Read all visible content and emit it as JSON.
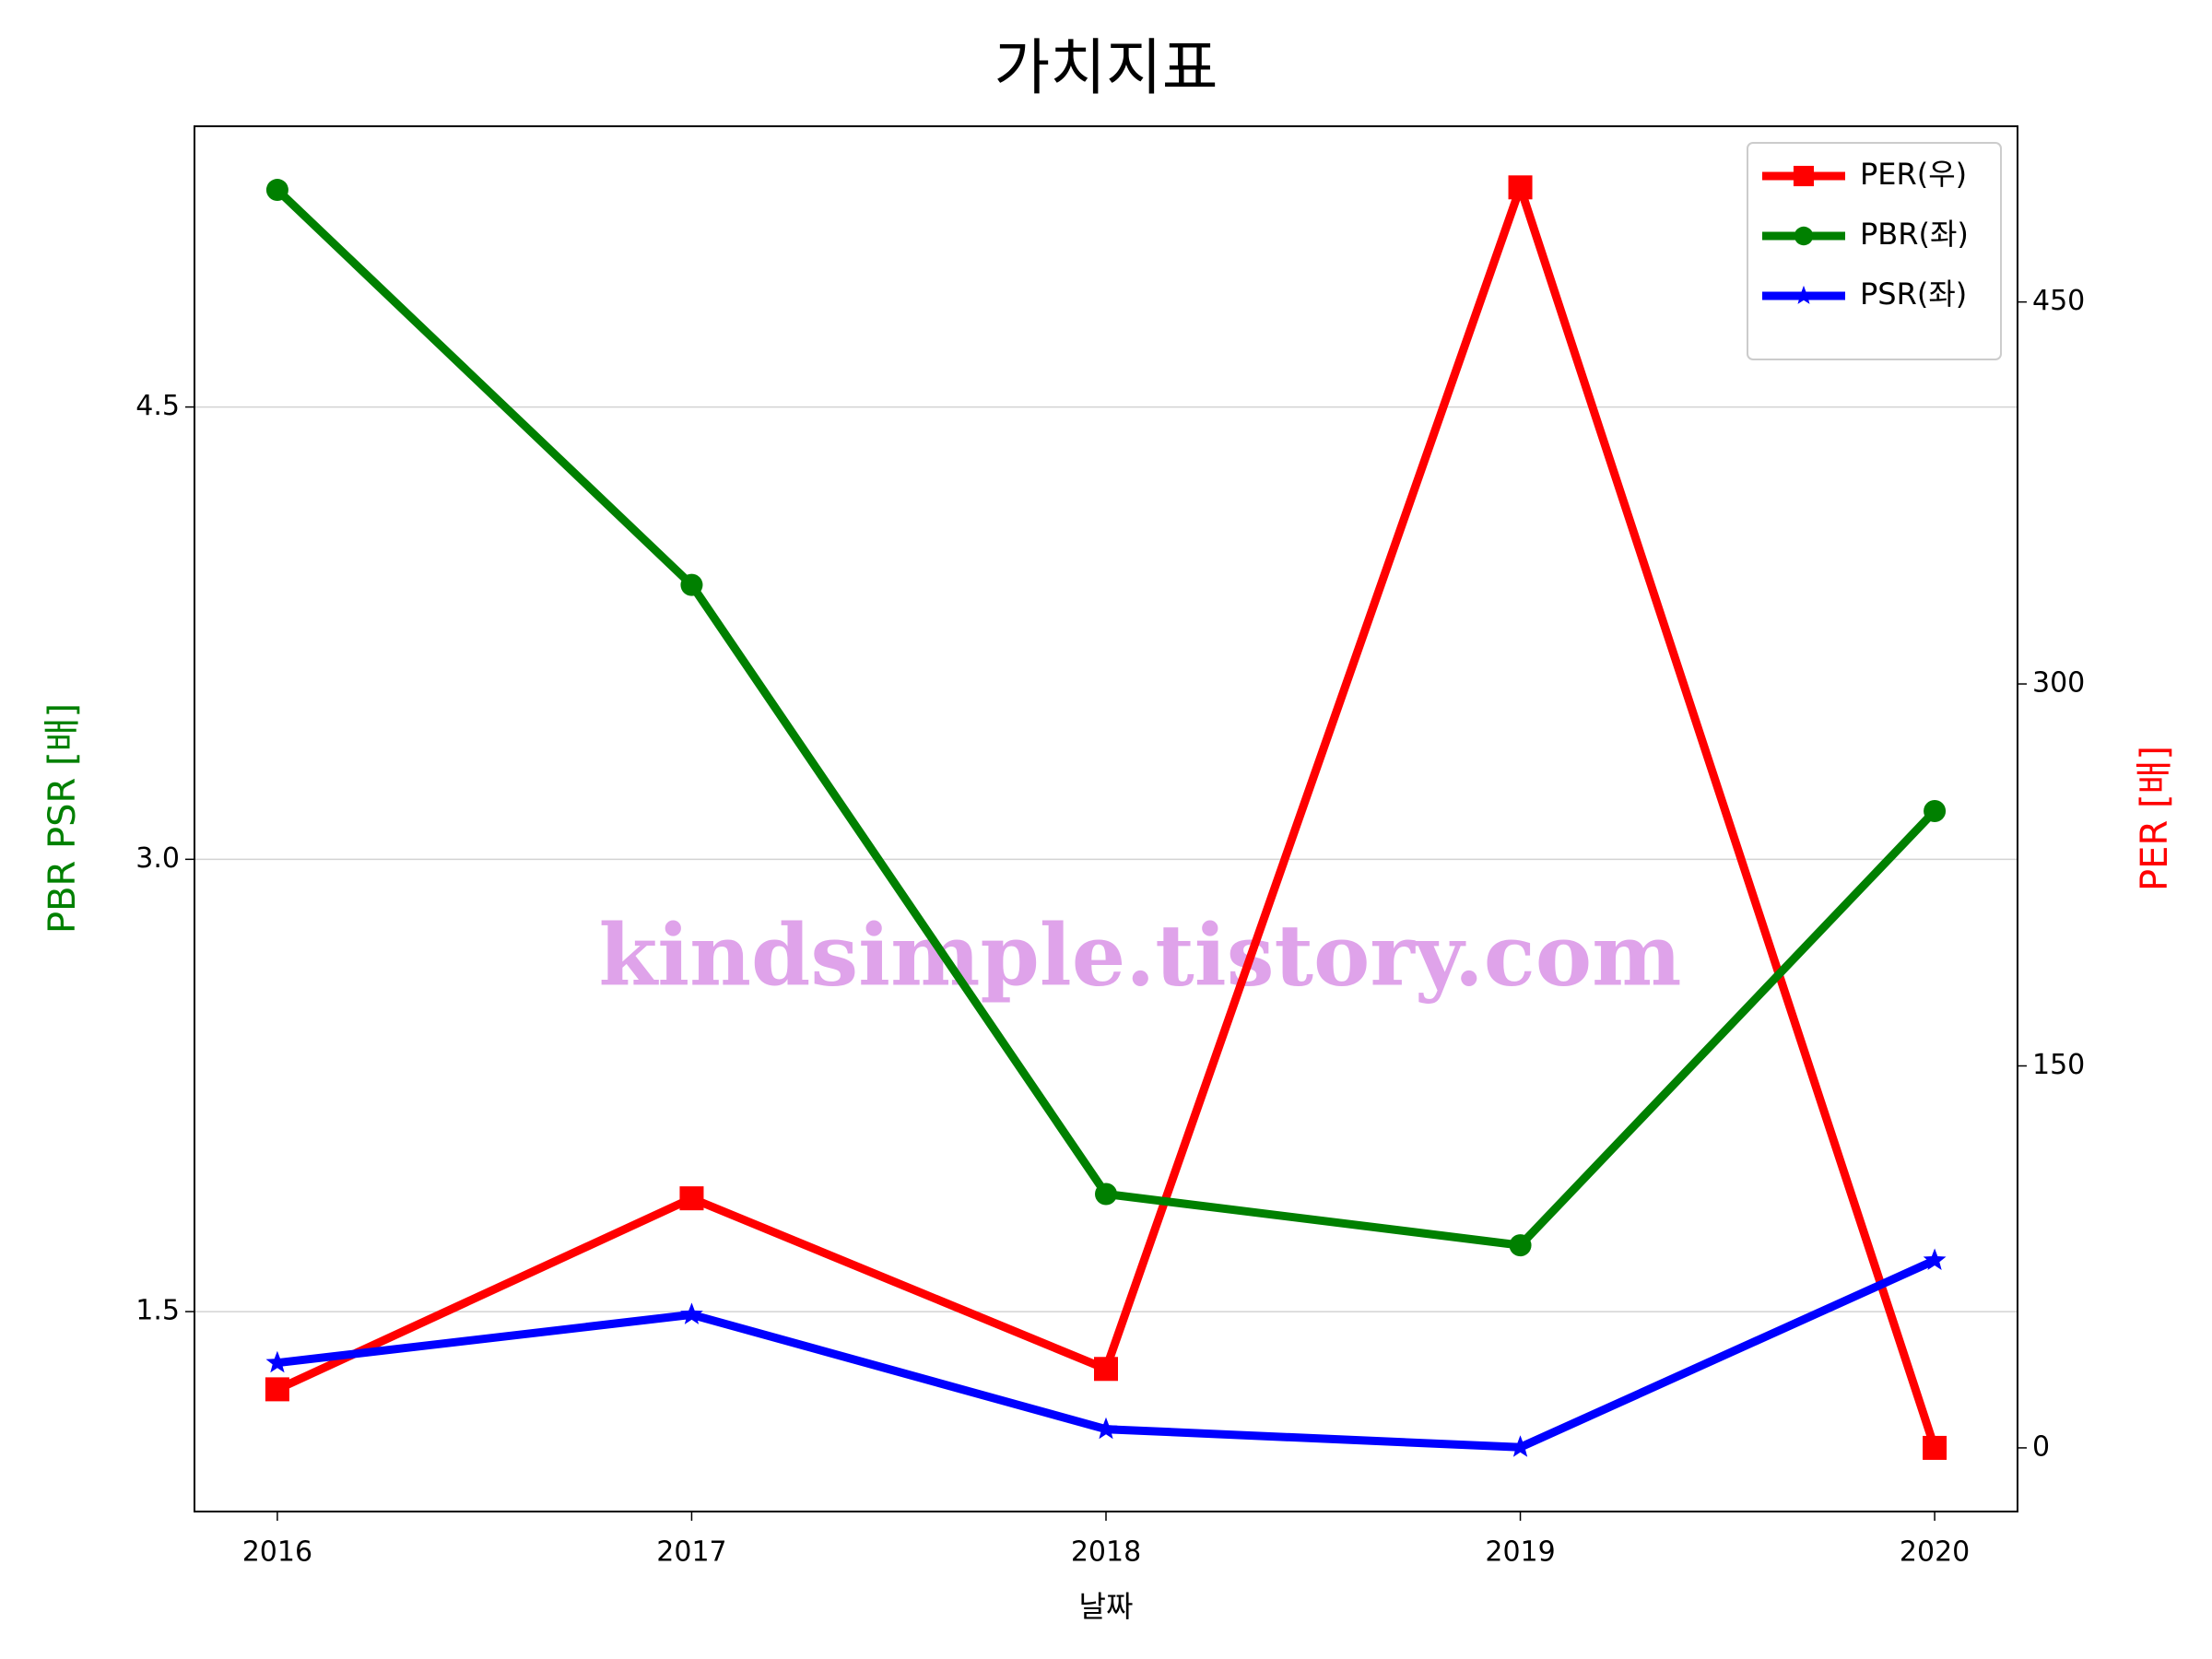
{
  "chart_data": {
    "type": "line",
    "title": "가치지표",
    "x_label": "날짜",
    "y_label": "PBR PSR [배]",
    "y2_label": "PER [배]",
    "y_label_color": "#008000",
    "y2_label_color": "#ff0000",
    "watermark": "kindsimple.tistory.com",
    "x": [
      2016,
      2017,
      2018,
      2019,
      2020
    ],
    "xlim": [
      2015.8,
      2020.2
    ],
    "xticks": [
      2016,
      2017,
      2018,
      2019,
      2020
    ],
    "ylim": [
      0.837,
      5.431
    ],
    "yticks": [
      1.5,
      {
        "value": 3,
        "label": "3.0"
      },
      4.5
    ],
    "y2lim": [
      -25,
      519
    ],
    "y2ticks": [
      0,
      150,
      300,
      450
    ],
    "grid": true,
    "legend": "upper right",
    "series": [
      {
        "name": "PER(우)",
        "color": "#ff0000",
        "marker": "square",
        "axis": "y2",
        "values": [
          23,
          98,
          31,
          495,
          0
        ]
      },
      {
        "name": "PBR(좌)",
        "color": "#008000",
        "marker": "circle",
        "values": [
          5.22,
          3.91,
          1.89,
          1.72,
          3.16
        ]
      },
      {
        "name": "PSR(좌)",
        "color": "#0000ff",
        "marker": "star",
        "values": [
          1.33,
          1.49,
          1.11,
          1.05,
          1.67
        ]
      }
    ]
  }
}
